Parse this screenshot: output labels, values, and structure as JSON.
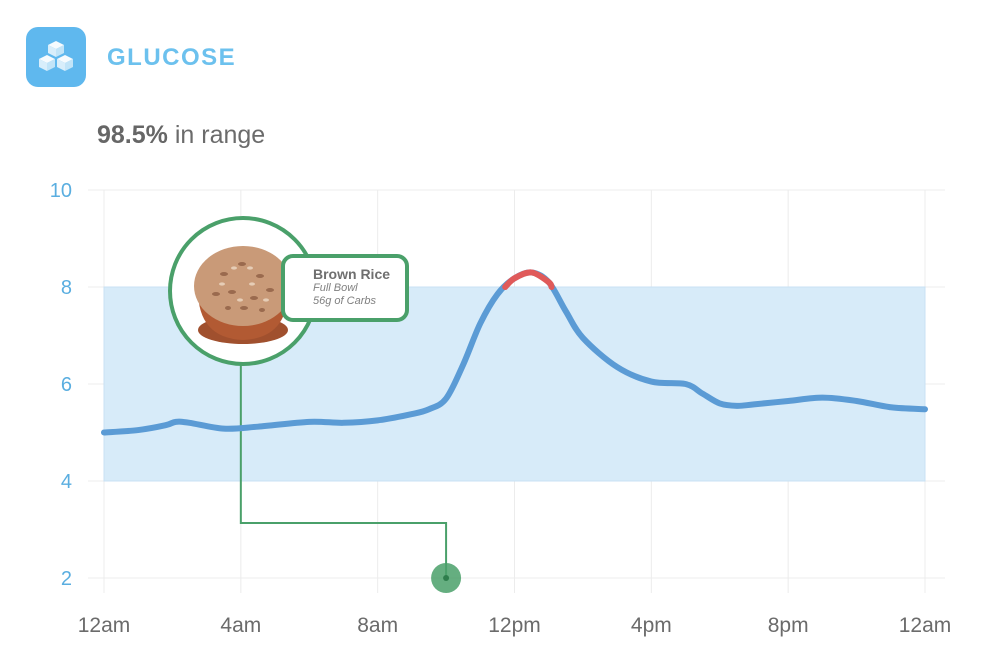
{
  "header": {
    "title": "GLUCOSE",
    "icon": "sugar-cubes-icon",
    "icon_color": "#5fb8ee"
  },
  "summary": {
    "percent": "98.5%",
    "label": " in range"
  },
  "meal": {
    "name": "Brown Rice",
    "portion": "Full Bowl",
    "carbs": "56g of Carbs",
    "time_hour": 10,
    "photo_hour": 4,
    "icon": "food-photo-rice"
  },
  "colors": {
    "line": "#5b9bd5",
    "out_of_range": "#e05a5a",
    "range_band": "#d7ebf9",
    "axis_text": "#5aaee0",
    "marker": "#4aa06a"
  },
  "chart_data": {
    "type": "line",
    "title": "GLUCOSE",
    "xlabel": "",
    "ylabel": "",
    "ylim": [
      1.5,
      10
    ],
    "xlim": [
      0,
      24
    ],
    "y_ticks": [
      2,
      4,
      6,
      8,
      10
    ],
    "x_ticks": [
      {
        "hour": 0,
        "label": "12am"
      },
      {
        "hour": 4,
        "label": "4am"
      },
      {
        "hour": 8,
        "label": "8am"
      },
      {
        "hour": 12,
        "label": "12pm"
      },
      {
        "hour": 16,
        "label": "4pm"
      },
      {
        "hour": 20,
        "label": "8pm"
      },
      {
        "hour": 24,
        "label": "12am"
      }
    ],
    "target_range": [
      4,
      8
    ],
    "grid": true,
    "series": [
      {
        "name": "Glucose",
        "x": [
          0,
          1,
          1.8,
          2.1,
          2.5,
          3.5,
          4.5,
          6,
          7,
          8,
          9,
          9.5,
          10,
          10.5,
          11,
          11.5,
          12,
          12.5,
          13,
          13.5,
          14,
          15,
          16,
          17,
          17.5,
          18,
          18.5,
          19,
          20,
          21,
          22,
          23,
          24
        ],
        "y": [
          5.0,
          5.05,
          5.15,
          5.22,
          5.2,
          5.08,
          5.12,
          5.22,
          5.2,
          5.25,
          5.38,
          5.48,
          5.7,
          6.4,
          7.25,
          7.85,
          8.18,
          8.3,
          8.1,
          7.5,
          6.95,
          6.35,
          6.05,
          6.0,
          5.8,
          5.6,
          5.55,
          5.58,
          5.65,
          5.72,
          5.65,
          5.52,
          5.48
        ]
      }
    ]
  }
}
